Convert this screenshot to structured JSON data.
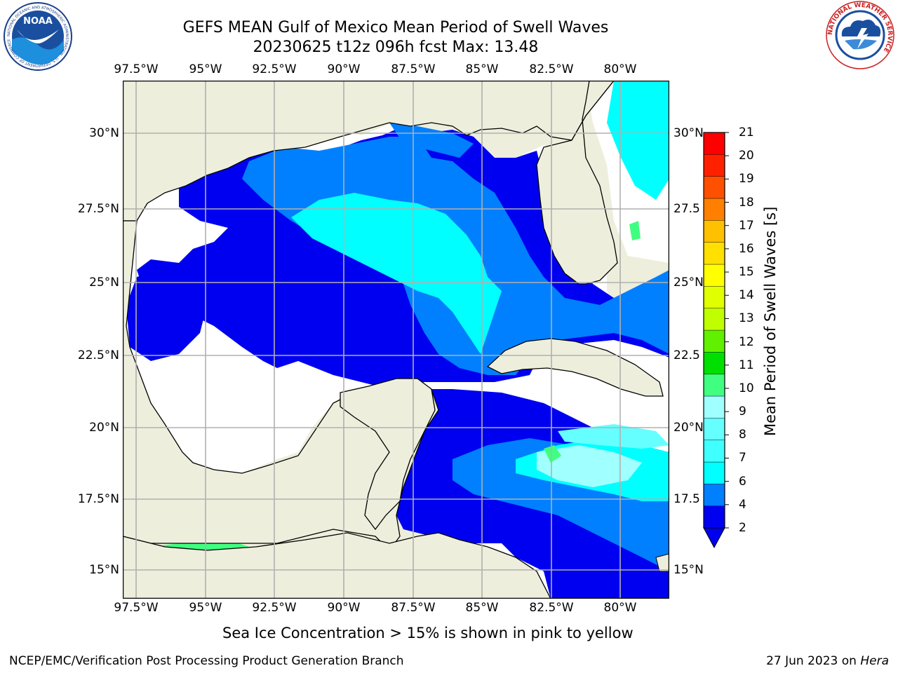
{
  "title": {
    "line1": "GEFS MEAN Gulf of Mexico Mean Period of Swell Waves",
    "line2": "20230625 t12z 096h fcst   Max: 13.48"
  },
  "map": {
    "lon_labels": [
      "97.5°W",
      "95°W",
      "92.5°W",
      "90°W",
      "87.5°W",
      "85°W",
      "82.5°W",
      "80°W"
    ],
    "lat_labels_left": [
      "30°N",
      "27.5°N",
      "25°N",
      "22.5°N",
      "20°N",
      "17.5°N",
      "15°N"
    ],
    "lat_labels_right": [
      "30°N",
      "27.5",
      "25°N",
      "22.5",
      "20°N",
      "17.5",
      "15°N"
    ],
    "colors": {
      "land": "#eeeedd",
      "no_data": "#ffffff",
      "coast": "#000000",
      "grid": "#b0b0b0"
    }
  },
  "colorbar": {
    "label": "Mean Period of Swell Waves [s]",
    "ticks": [
      "2",
      "4",
      "6",
      "7",
      "8",
      "9",
      "10",
      "11",
      "12",
      "13",
      "14",
      "15",
      "16",
      "17",
      "18",
      "19",
      "20",
      "21"
    ],
    "colors": [
      "#0000f0",
      "#0080ff",
      "#00ffff",
      "#40ffff",
      "#66ffff",
      "#a0ffff",
      "#40ff80",
      "#00e000",
      "#60f000",
      "#c0ff00",
      "#e0ff00",
      "#ffff00",
      "#ffe000",
      "#ffc000",
      "#ff8000",
      "#ff5000",
      "#ff2000",
      "#ff0000"
    ]
  },
  "note": "Sea Ice Concentration > 15% is shown in pink to yellow",
  "footer": {
    "left": "NCEP/EMC/Verification Post Processing Product Generation Branch",
    "right_date": "27 Jun 2023 on ",
    "right_host": "Hera"
  },
  "logos": {
    "noaa_text": "NOAA",
    "noaa_ring_text": "NATIONAL OCEANIC AND ATMOSPHERIC ADMINISTRATION · U.S. DEPARTMENT OF COMMERCE",
    "nws_ring_text": "NATIONAL WEATHER SERVICE"
  }
}
